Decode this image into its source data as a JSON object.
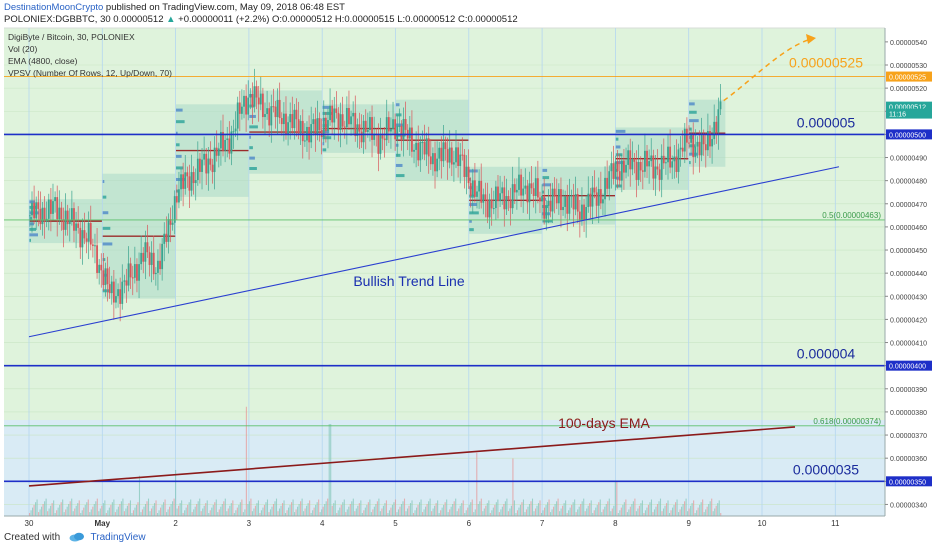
{
  "header": {
    "author": "DestinationMoonCrypto",
    "published": " published on TradingView.com, May 09, 2018 06:48 EST",
    "symbol_line": "POLONIEX:DGBBTC, 30  0.00000512",
    "change": "+0.00000011 (+2.2%)",
    "ohlc": "O:0.00000512  H:0.00000515  L:0.00000512  C:0.00000512"
  },
  "indicators": [
    "DigiByte / Bitcoin, 30, POLONIEX",
    "Vol (20)",
    "EMA (4800, close)",
    "VPSV (Number Of Rows, 12, Up/Down, 70)"
  ],
  "footer": {
    "created_with": "Created with",
    "brand": "TradingView"
  },
  "chart_data": {
    "type": "candlestick",
    "instrument": "DGBBTC",
    "timeframe": "30",
    "x_ticks": [
      "30",
      "May",
      "2",
      "3",
      "4",
      "5",
      "6",
      "7",
      "8",
      "9",
      "10",
      "11"
    ],
    "y_ticks": [
      "0.00000540",
      "0.00000530",
      "0.00000520",
      "0.00000510",
      "0.00000500",
      "0.00000490",
      "0.00000480",
      "0.00000470",
      "0.00000460",
      "0.00000450",
      "0.00000440",
      "0.00000430",
      "0.00000420",
      "0.00000410",
      "0.00000400",
      "0.00000390",
      "0.00000380",
      "0.00000370",
      "0.00000360",
      "0.00000350",
      "0.00000340"
    ],
    "y_range": [
      3.35e-06,
      5.46e-06
    ],
    "price_markers": [
      {
        "label": "0.00000525",
        "value": 5.25e-06,
        "color": "#f7a21b"
      },
      {
        "label": "0.00000512",
        "value": 5.12e-06,
        "color": "#26a69a"
      },
      {
        "label": "11:16",
        "value": 5.09e-06,
        "color": "#26a69a"
      },
      {
        "label": "0.00000500",
        "value": 5e-06,
        "color": "#1e2fc8"
      },
      {
        "label": "0.00000400",
        "value": 4e-06,
        "color": "#1e2fc8"
      },
      {
        "label": "0.00000350",
        "value": 3.5e-06,
        "color": "#1e2fc8"
      }
    ],
    "horizontal_levels": [
      {
        "value": 5e-06,
        "label": "0.000005",
        "color": "#1e2fc8"
      },
      {
        "value": 4e-06,
        "label": "0.000004",
        "color": "#1e2fc8"
      },
      {
        "value": 3.5e-06,
        "label": "0.0000035",
        "color": "#1e2fc8"
      }
    ],
    "target": {
      "value": 5.25e-06,
      "label": "0.00000525",
      "color": "#f7a21b"
    },
    "fibonacci": [
      {
        "ratio_label": "0.5(0.00000463)",
        "value": 4.63e-06
      },
      {
        "ratio_label": "0.618(0.00000374)",
        "value": 3.74e-06
      }
    ],
    "trendlines": [
      {
        "label": "Bullish Trend Line",
        "from": {
          "day": 0.0,
          "value": 4.125e-06
        },
        "to": {
          "day": 11.05,
          "value": 4.86e-06
        },
        "color": "#2a3fd0"
      },
      {
        "label": "100-days EMA",
        "from": {
          "day": 0.0,
          "value": 3.48e-06
        },
        "to": {
          "day": 10.45,
          "value": 3.735e-06
        },
        "color": "#8b1a1a"
      }
    ],
    "price_path": [
      {
        "day": 0.0,
        "value": 4.65e-06
      },
      {
        "day": 0.35,
        "value": 4.68e-06
      },
      {
        "day": 0.55,
        "value": 4.62e-06
      },
      {
        "day": 0.8,
        "value": 4.55e-06
      },
      {
        "day": 1.0,
        "value": 4.4e-06
      },
      {
        "day": 1.1,
        "value": 4.3e-06
      },
      {
        "day": 1.3,
        "value": 4.35e-06
      },
      {
        "day": 1.55,
        "value": 4.48e-06
      },
      {
        "day": 1.75,
        "value": 4.43e-06
      },
      {
        "day": 1.9,
        "value": 4.6e-06
      },
      {
        "day": 2.0,
        "value": 4.75e-06
      },
      {
        "day": 2.2,
        "value": 4.82e-06
      },
      {
        "day": 2.5,
        "value": 4.9e-06
      },
      {
        "day": 2.75,
        "value": 5e-06
      },
      {
        "day": 2.9,
        "value": 5.12e-06
      },
      {
        "day": 3.0,
        "value": 5.18e-06
      },
      {
        "day": 3.15,
        "value": 5.12e-06
      },
      {
        "day": 3.4,
        "value": 5.08e-06
      },
      {
        "day": 3.6,
        "value": 5.05e-06
      },
      {
        "day": 3.8,
        "value": 5e-06
      },
      {
        "day": 4.0,
        "value": 5.05e-06
      },
      {
        "day": 4.2,
        "value": 5.08e-06
      },
      {
        "day": 4.5,
        "value": 5.03e-06
      },
      {
        "day": 4.8,
        "value": 4.98e-06
      },
      {
        "day": 5.0,
        "value": 5.05e-06
      },
      {
        "day": 5.2,
        "value": 4.97e-06
      },
      {
        "day": 5.5,
        "value": 4.9e-06
      },
      {
        "day": 5.8,
        "value": 4.92e-06
      },
      {
        "day": 6.0,
        "value": 4.8e-06
      },
      {
        "day": 6.2,
        "value": 4.7e-06
      },
      {
        "day": 6.5,
        "value": 4.73e-06
      },
      {
        "day": 6.8,
        "value": 4.78e-06
      },
      {
        "day": 7.0,
        "value": 4.7e-06
      },
      {
        "day": 7.3,
        "value": 4.72e-06
      },
      {
        "day": 7.5,
        "value": 4.67e-06
      },
      {
        "day": 7.8,
        "value": 4.75e-06
      },
      {
        "day": 8.0,
        "value": 4.86e-06
      },
      {
        "day": 8.3,
        "value": 4.87e-06
      },
      {
        "day": 8.6,
        "value": 4.86e-06
      },
      {
        "day": 8.8,
        "value": 4.9e-06
      },
      {
        "day": 9.0,
        "value": 4.98e-06
      },
      {
        "day": 9.2,
        "value": 4.93e-06
      },
      {
        "day": 9.35,
        "value": 5.05e-06
      },
      {
        "day": 9.45,
        "value": 5.12e-06
      }
    ],
    "volume_spikes": [
      {
        "day": 1.5,
        "level": 0.35
      },
      {
        "day": 2.0,
        "level": 0.4
      },
      {
        "day": 2.95,
        "level": 0.95
      },
      {
        "day": 4.1,
        "level": 0.8
      },
      {
        "day": 6.1,
        "level": 0.55
      },
      {
        "day": 6.6,
        "level": 0.5
      },
      {
        "day": 8.0,
        "level": 0.3
      },
      {
        "day": 9.45,
        "level": 0.45
      }
    ],
    "annotations": [
      {
        "text": "Bullish Trend Line",
        "color": "#1a2fb0"
      },
      {
        "text": "100-days EMA",
        "color": "#8b1a1a"
      }
    ]
  }
}
